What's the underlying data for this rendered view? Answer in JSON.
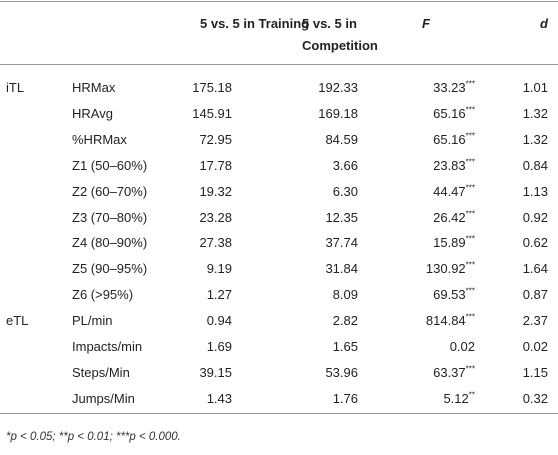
{
  "table": {
    "headers": [
      {
        "text": "5 vs. 5 in Training"
      },
      {
        "text": "5 vs. 5 in Competition"
      },
      {
        "text": "F"
      },
      {
        "text": "d"
      }
    ],
    "groups": [
      {
        "label": "iTL",
        "rows": [
          {
            "variable": "HRMax",
            "training": "175.18",
            "competition": "192.33",
            "f": "33.23",
            "sig": "***",
            "d": "1.01"
          },
          {
            "variable": "HRAvg",
            "training": "145.91",
            "competition": "169.18",
            "f": "65.16",
            "sig": "***",
            "d": "1.32"
          },
          {
            "variable": "%HRMax",
            "training": "72.95",
            "competition": "84.59",
            "f": "65.16",
            "sig": "***",
            "d": "1.32"
          },
          {
            "variable": "Z1 (50–60%)",
            "training": "17.78",
            "competition": "3.66",
            "f": "23.83",
            "sig": "***",
            "d": "0.84"
          },
          {
            "variable": "Z2 (60–70%)",
            "training": "19.32",
            "competition": "6.30",
            "f": "44.47",
            "sig": "***",
            "d": "1.13"
          },
          {
            "variable": "Z3 (70–80%)",
            "training": "23.28",
            "competition": "12.35",
            "f": "26.42",
            "sig": "***",
            "d": "0.92"
          },
          {
            "variable": "Z4 (80–90%)",
            "training": "27.38",
            "competition": "37.74",
            "f": "15.89",
            "sig": "***",
            "d": "0.62"
          },
          {
            "variable": "Z5 (90–95%)",
            "training": "9.19",
            "competition": "31.84",
            "f": "130.92",
            "sig": "***",
            "d": "1.64"
          },
          {
            "variable": "Z6 (>95%)",
            "training": "1.27",
            "competition": "8.09",
            "f": "69.53",
            "sig": "***",
            "d": "0.87"
          }
        ]
      },
      {
        "label": "eTL",
        "rows": [
          {
            "variable": "PL/min",
            "training": "0.94",
            "competition": "2.82",
            "f": "814.84",
            "sig": "***",
            "d": "2.37"
          },
          {
            "variable": "Impacts/min",
            "training": "1.69",
            "competition": "1.65",
            "f": "0.02",
            "d": "0.02"
          },
          {
            "variable": "Steps/Min",
            "training": "39.15",
            "competition": "53.96",
            "f": "63.37",
            "sig": "***",
            "d": "1.15"
          },
          {
            "variable": "Jumps/Min",
            "training": "1.43",
            "competition": "1.76",
            "f": "5.12",
            "sig": "**",
            "d": "0.32"
          }
        ]
      }
    ],
    "footnote": "*p < 0.05; **p < 0.01; ***p < 0.000."
  }
}
